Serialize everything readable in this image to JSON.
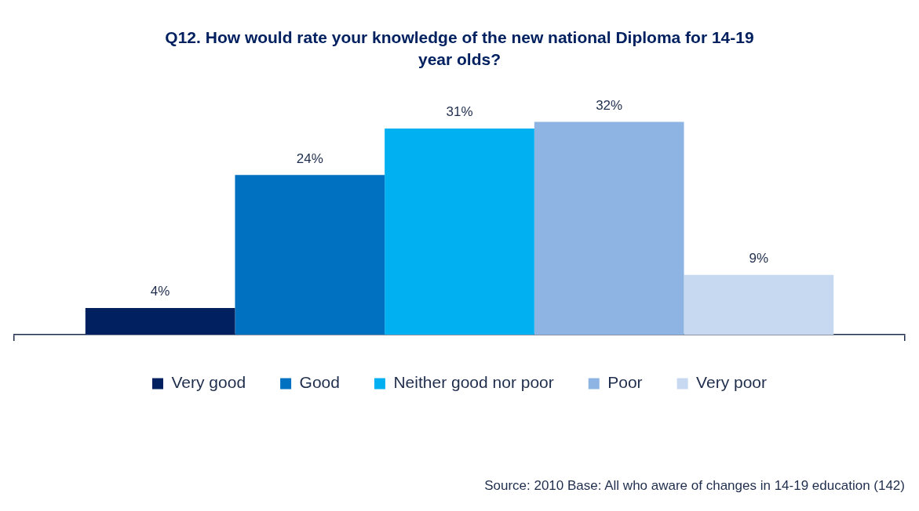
{
  "chart_data": {
    "type": "bar",
    "title": "Q12.  How would rate your knowledge of the new national Diploma for 14-19 year olds?",
    "categories": [
      null
    ],
    "series": [
      {
        "name": "Very good",
        "color": "#002060",
        "values": [
          4
        ],
        "value_labels": [
          "4%"
        ]
      },
      {
        "name": "Good",
        "color": "#0070c0",
        "values": [
          24
        ],
        "value_labels": [
          "24%"
        ]
      },
      {
        "name": "Neither good nor poor",
        "color": "#00b0f0",
        "values": [
          31
        ],
        "value_labels": [
          "31%"
        ]
      },
      {
        "name": "Poor",
        "color": "#8eb4e3",
        "values": [
          32
        ],
        "value_labels": [
          "32%"
        ]
      },
      {
        "name": "Very poor",
        "color": "#c6d9f1",
        "values": [
          9
        ],
        "value_labels": [
          "9%"
        ]
      }
    ],
    "grid": false,
    "legend": "bottom",
    "annotations": [
      "Source: 2010  Base: All who aware of changes in 14-19 education (142)"
    ]
  }
}
